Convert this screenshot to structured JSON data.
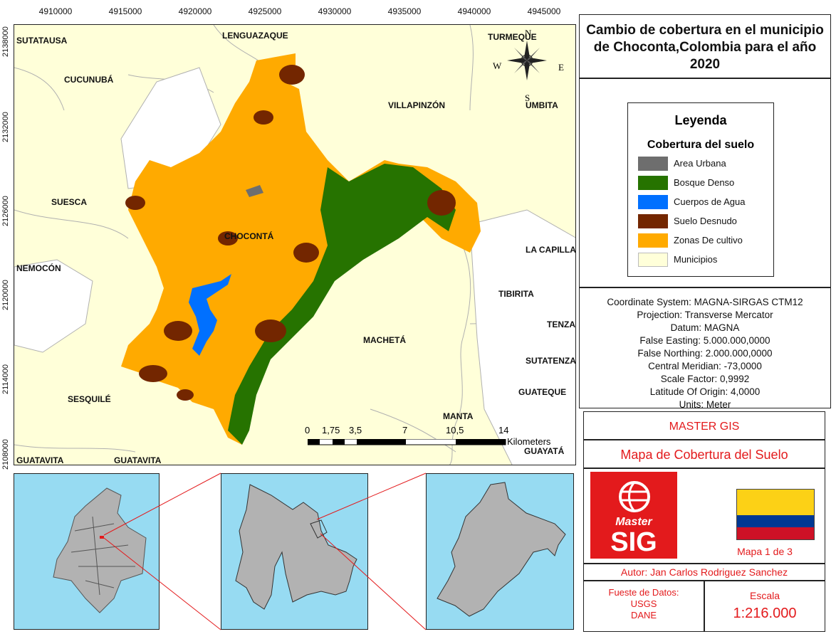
{
  "map": {
    "x_ticks": [
      "4910000",
      "4915000",
      "4920000",
      "4925000",
      "4930000",
      "4935000",
      "4940000",
      "4945000"
    ],
    "y_ticks": [
      "2138000",
      "2132000",
      "2126000",
      "2120000",
      "2114000",
      "2108000"
    ],
    "municipalities": [
      "SUTATAUSA",
      "LENGUAZAQUE",
      "TURMEQUE",
      "CUCUNUBÁ",
      "VILLAPINZÓN",
      "UMBITA",
      "SUESCA",
      "CHOCONTÁ",
      "LA CAPILLA",
      "NEMOCÓN",
      "TIBIRITA",
      "TENZA",
      "MACHETÁ",
      "SUTATENZA",
      "GUATEQUE",
      "SESQUILÉ",
      "MANTA",
      "GUATAVITA",
      "GUATAVITA",
      "GUAYATÁ"
    ],
    "compass": {
      "n": "N",
      "s": "S",
      "e": "E",
      "w": "W"
    },
    "scalebar": {
      "labels": [
        "0",
        "1,75",
        "3,5",
        "7",
        "10,5",
        "14"
      ],
      "unit": "Kilometers"
    }
  },
  "title": "Cambio de cobertura en el municipio de Choconta,Colombia para el año 2020",
  "legend": {
    "title": "Leyenda",
    "subtitle": "Cobertura del suelo",
    "items": [
      {
        "label": "Area Urbana",
        "color": "#6e6e6e"
      },
      {
        "label": "Bosque Denso",
        "color": "#267300"
      },
      {
        "label": "Cuerpos de Agua",
        "color": "#0070ff"
      },
      {
        "label": "Suelo Desnudo",
        "color": "#732600"
      },
      {
        "label": "Zonas De cultivo",
        "color": "#ffaa00"
      },
      {
        "label": "Municipios",
        "color": "#ffffd9"
      }
    ]
  },
  "coord_info": [
    "Coordinate System: MAGNA-SIRGAS CTM12",
    "Projection: Transverse Mercator",
    "Datum: MAGNA",
    "False Easting: 5.000.000,0000",
    "False Northing: 2.000.000,0000",
    "Central Meridian: -73,0000",
    "Scale Factor: 0,9992",
    "Latitude Of Origin: 4,0000",
    "Units: Meter"
  ],
  "info": {
    "org": "MASTER GIS",
    "map_title": "Mapa de Cobertura del Suelo",
    "logo_top": "Master",
    "logo_bottom": "SIG",
    "map_number": "Mapa 1 de 3",
    "author": "Autor: Jan Carlos Rodriguez Sanchez",
    "sources_label": "Fueste de Datos:",
    "sources": [
      "USGS",
      "DANE"
    ],
    "scale_label": "Escala",
    "scale_value": "1:216.000"
  },
  "colors": {
    "sea": "#97dbf2",
    "land": "#ffffd9",
    "inset_land": "#b2b2b2",
    "red": "#e31a1c"
  }
}
